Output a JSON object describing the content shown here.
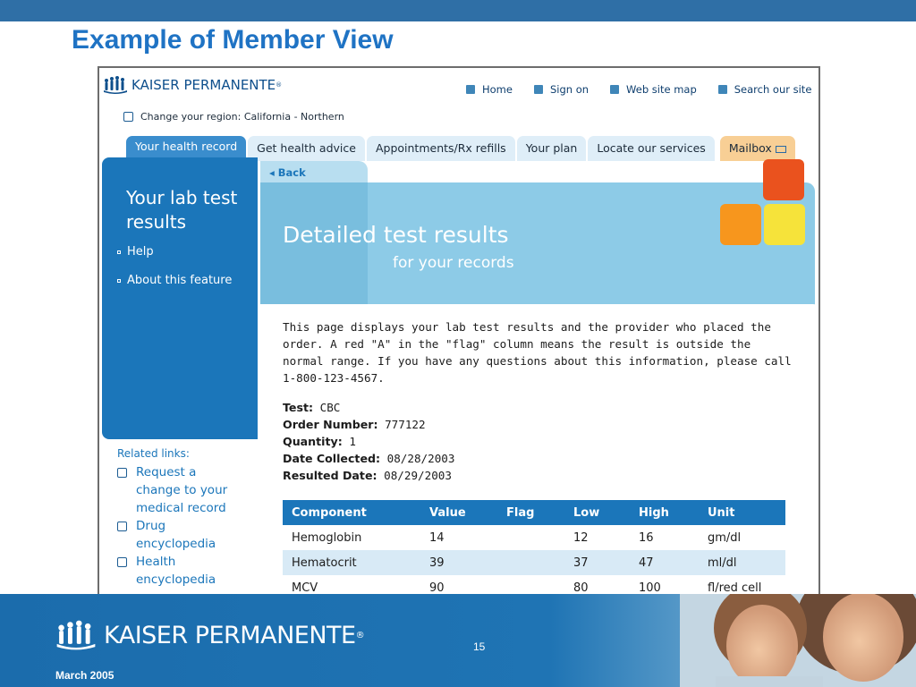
{
  "slide": {
    "title": "Example of Member View",
    "page_number": "15",
    "date": "March 2005",
    "brand": "KAISER PERMANENTE"
  },
  "site": {
    "logo_text": "KAISER PERMANENTE",
    "top_nav": [
      {
        "label": "Home"
      },
      {
        "label": "Sign on"
      },
      {
        "label": "Web site map"
      },
      {
        "label": "Search our site"
      }
    ],
    "region_label": "Change your region: California - Northern",
    "tabs": [
      {
        "label": "Your health record",
        "active": true
      },
      {
        "label": "Get health advice"
      },
      {
        "label": "Appointments/Rx refills"
      },
      {
        "label": "Your plan"
      },
      {
        "label": "Locate our services"
      },
      {
        "label": "Mailbox"
      }
    ],
    "back_label": "◂ Back",
    "sidebar": {
      "title": "Your lab test results",
      "links": [
        {
          "label": "Help"
        },
        {
          "label": "About this feature"
        }
      ]
    },
    "related": {
      "title": "Related links:",
      "items": [
        {
          "label": "Request a change to your medical record"
        },
        {
          "label": "Drug encyclopedia"
        },
        {
          "label": "Health encyclopedia"
        }
      ]
    },
    "header": {
      "title": "Detailed test results",
      "subtitle": "for your records"
    },
    "intro": "This page displays your lab test results and the provider who placed the order. A red \"A\" in the \"flag\" column means the result is outside the normal range. If you have any questions about this information, please call 1-800-123-4567.",
    "details": [
      {
        "label": "Test:",
        "value": "CBC"
      },
      {
        "label": "Order Number:",
        "value": "777122"
      },
      {
        "label": "Quantity:",
        "value": "1"
      },
      {
        "label": "Date Collected:",
        "value": "08/28/2003"
      },
      {
        "label": "Resulted Date:",
        "value": "08/29/2003"
      }
    ],
    "table": {
      "headers": [
        "Component",
        "Value",
        "Flag",
        "Low",
        "High",
        "Unit"
      ],
      "rows": [
        [
          "Hemoglobin",
          "14",
          "",
          "12",
          "16",
          "gm/dl"
        ],
        [
          "Hematocrit",
          "39",
          "",
          "37",
          "47",
          "ml/dl"
        ],
        [
          "MCV",
          "90",
          "",
          "80",
          "100",
          "fl/red cell"
        ]
      ]
    }
  }
}
